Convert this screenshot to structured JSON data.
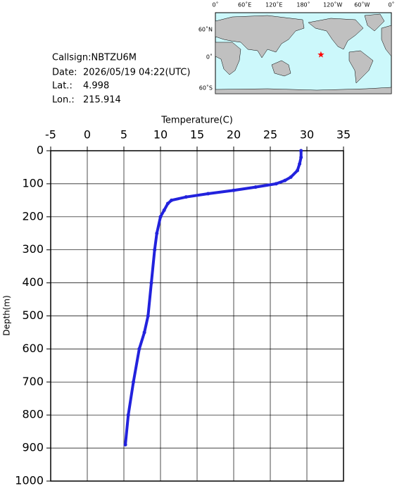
{
  "info": {
    "callsign": "Callsign:NBTZU6M",
    "date_label": "Date:",
    "date": "2026/05/19 04:22(UTC)",
    "lat_label": "Lat.:",
    "lat": 4.998,
    "lon_label": "Lon.:",
    "lon": 215.914
  },
  "map": {
    "lon_labels": [
      "0˚",
      "60˚E",
      "120˚E",
      "180˚",
      "120˚W",
      "60˚W",
      "0˚"
    ],
    "lat_labels": [
      "60˚N",
      "0˚",
      "60˚S"
    ]
  },
  "chart_data": {
    "type": "line",
    "x_label": "Temperature(C)",
    "y_label": "Depth(m)",
    "depths": [
      0,
      20,
      40,
      60,
      80,
      90,
      100,
      110,
      120,
      130,
      140,
      150,
      160,
      180,
      200,
      250,
      300,
      400,
      500,
      550,
      600,
      700,
      800,
      890
    ],
    "series": [
      {
        "color": "#2222dd",
        "values": [
          29.2,
          29.2,
          29.0,
          28.7,
          27.8,
          27.0,
          25.8,
          23.0,
          20.0,
          16.5,
          13.5,
          11.5,
          11.0,
          10.5,
          10.0,
          9.5,
          9.2,
          8.75,
          8.3,
          7.8,
          7.1,
          6.3,
          5.6,
          5.2
        ]
      }
    ],
    "xlim": [
      -5,
      35
    ],
    "xticks": [
      -5,
      0,
      5,
      10,
      15,
      20,
      25,
      30,
      35
    ],
    "ylim": [
      0,
      1000
    ],
    "yticks": [
      0,
      100,
      200,
      300,
      400,
      500,
      600,
      700,
      800,
      900,
      1000
    ],
    "grid": true
  }
}
